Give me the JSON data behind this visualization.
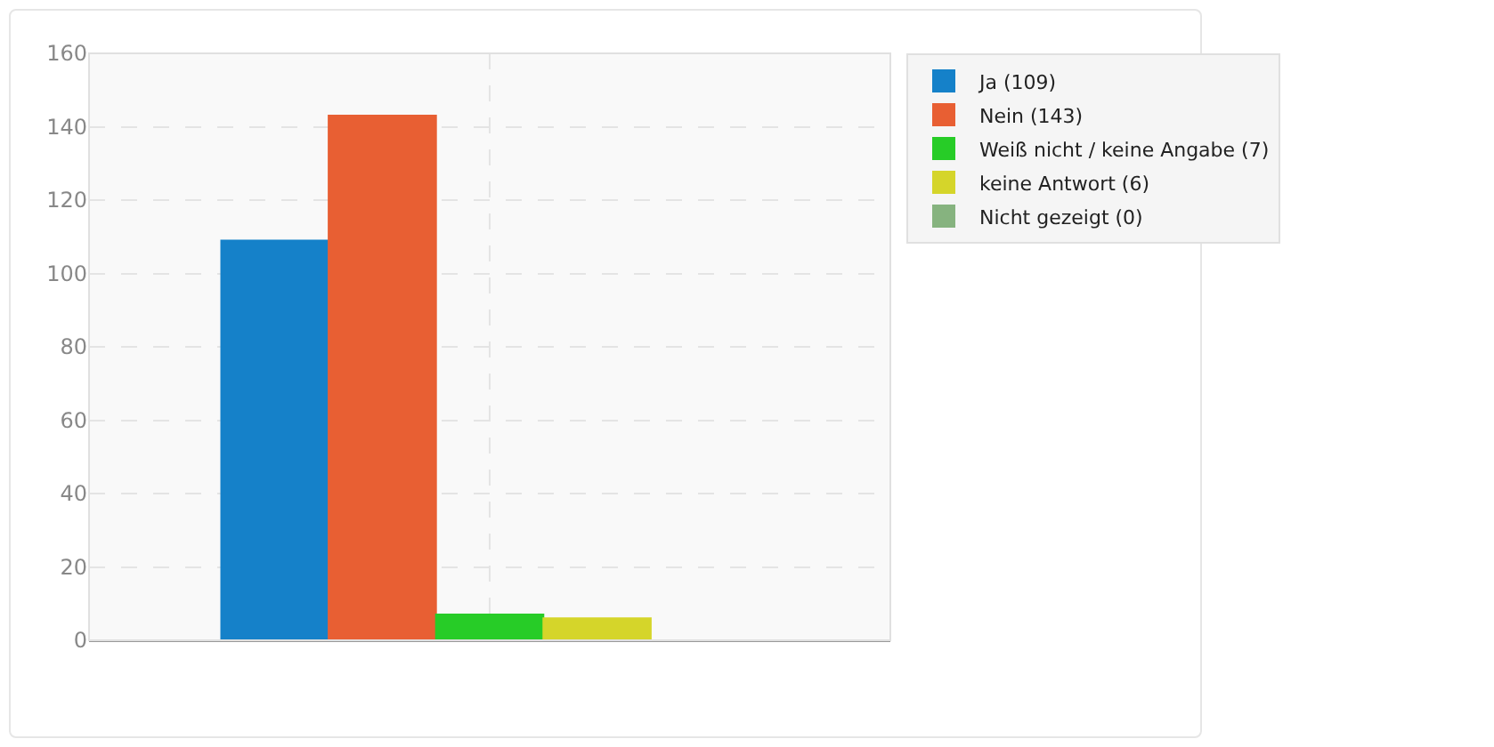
{
  "chart_data": {
    "type": "bar",
    "categories": [
      null
    ],
    "series": [
      {
        "name": "Ja (109)",
        "color": "#1581c9",
        "values": [
          109
        ]
      },
      {
        "name": "Nein (143)",
        "color": "#e85f33",
        "values": [
          143
        ]
      },
      {
        "name": "Weiß nicht / keine Angabe (7)",
        "color": "#27cc27",
        "values": [
          7
        ]
      },
      {
        "name": "keine Antwort (6)",
        "color": "#d5d52a",
        "values": [
          6
        ]
      },
      {
        "name": "Nicht gezeigt (0)",
        "color": "#86b37f",
        "values": [
          0
        ]
      }
    ],
    "ylim": [
      0,
      160
    ],
    "yticks": [
      0,
      20,
      40,
      60,
      80,
      100,
      120,
      140,
      160
    ],
    "grid": true,
    "legend": "top right"
  }
}
